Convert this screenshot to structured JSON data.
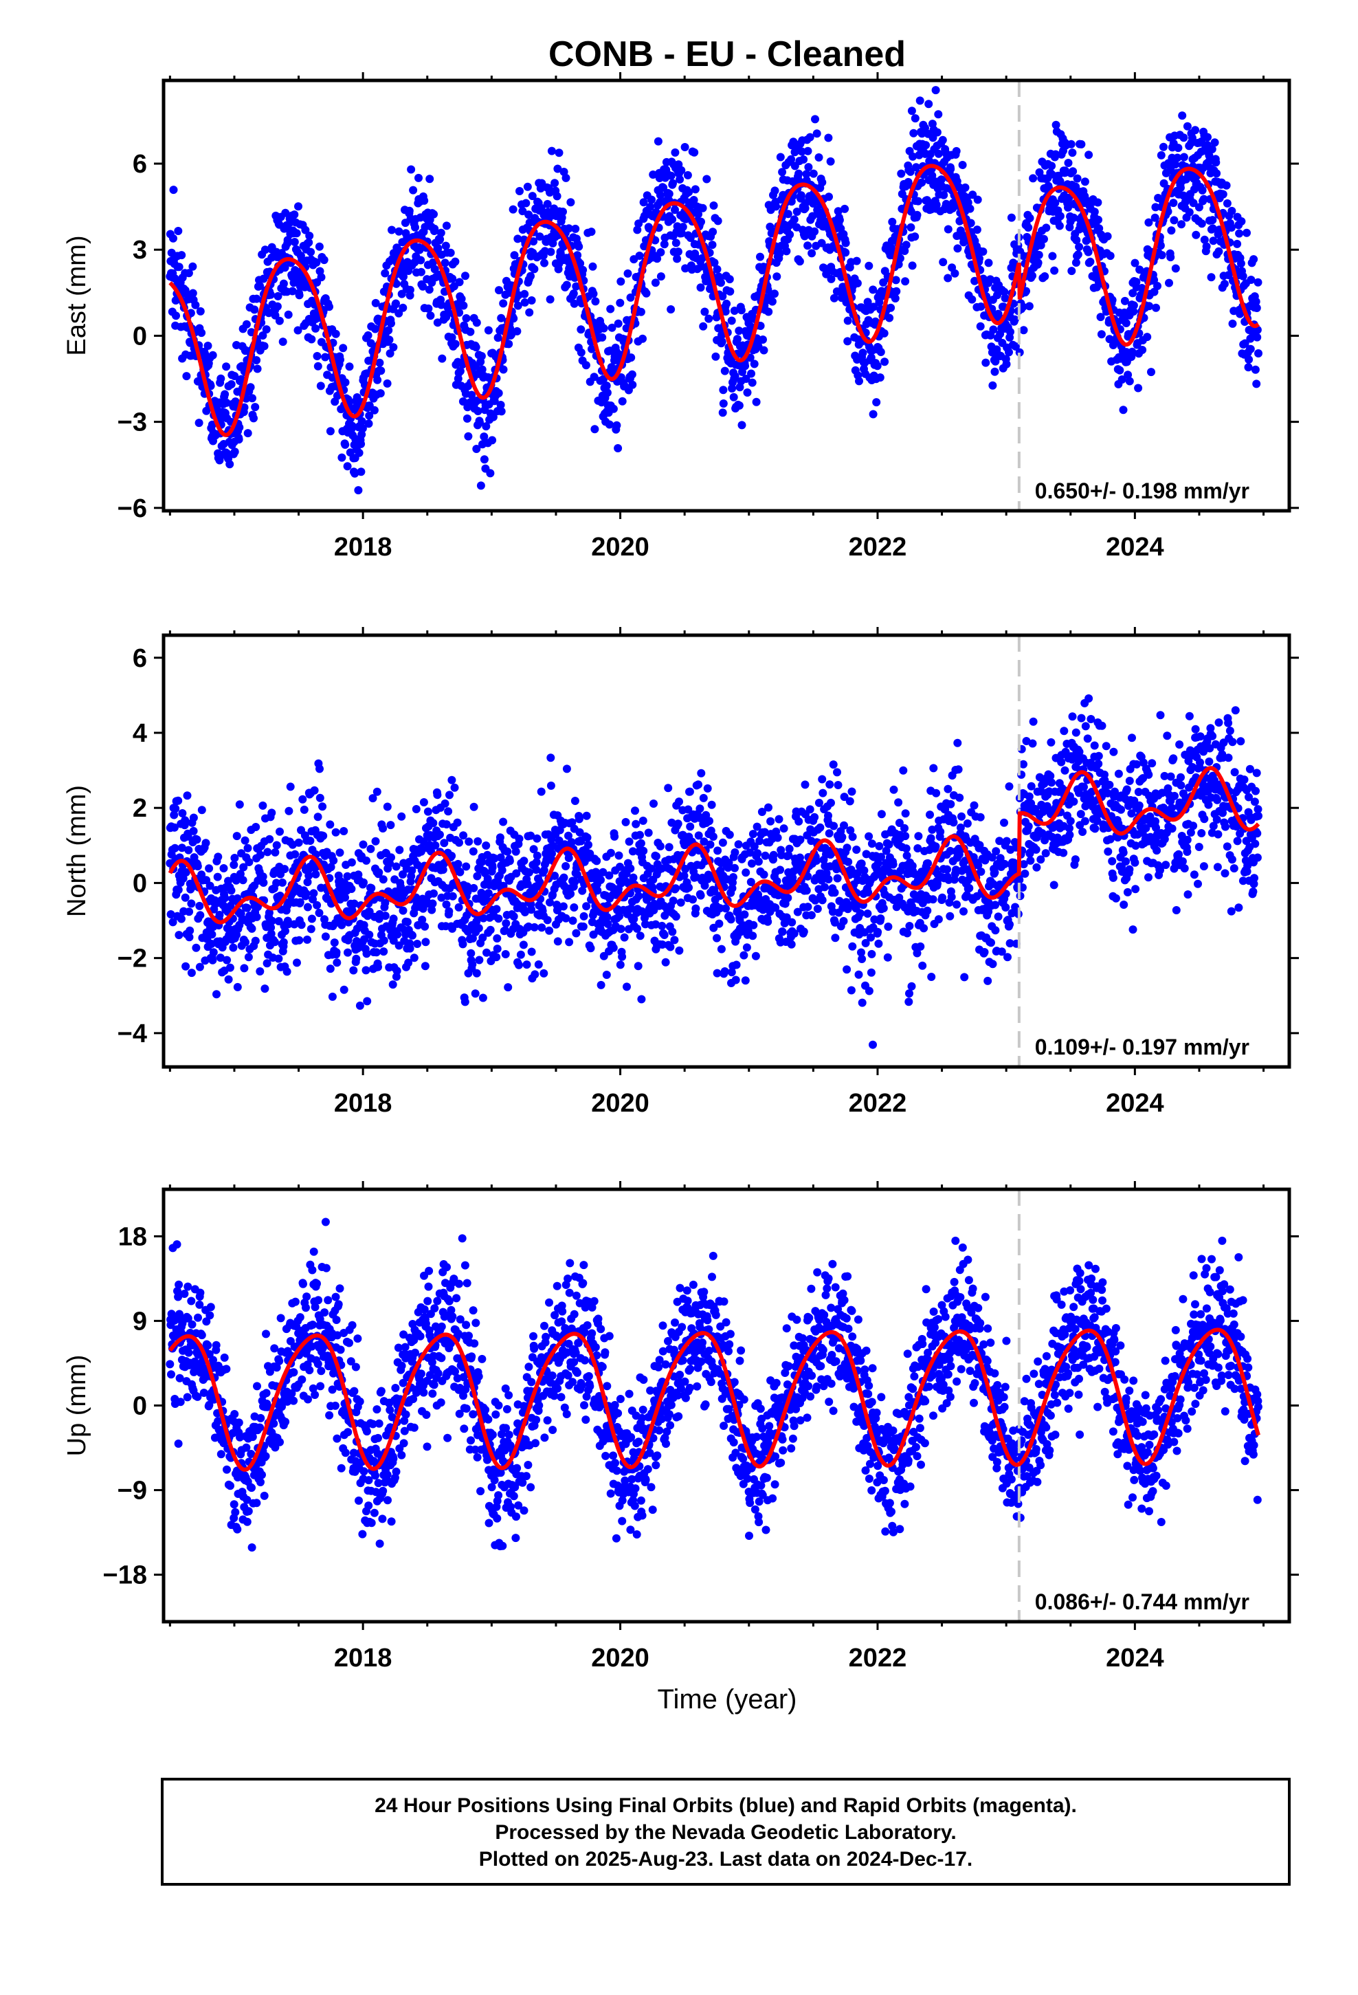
{
  "title": "CONB  - EU - Cleaned",
  "xlabel": "Time (year)",
  "footer": {
    "line1": "24 Hour Positions Using Final Orbits (blue) and Rapid Orbits (magenta).",
    "line2": "Processed by the Nevada Geodetic Laboratory.",
    "line3": "Plotted on 2025-Aug-23. Last data on 2024-Dec-17."
  },
  "colors": {
    "points": "#0000ff",
    "fit": "#ff0000",
    "break_line": "#c8c8c8",
    "frame": "#000000"
  },
  "chart_data": [
    {
      "type": "scatter",
      "component": "east",
      "ylabel": "East (mm)",
      "rate_text": "0.650+/- 0.198 mm/yr",
      "xlim": [
        2016.45,
        2025.2
      ],
      "ylim": [
        -6.1,
        8.9
      ],
      "xticks": [
        2018,
        2020,
        2022,
        2024
      ],
      "xtick_labels": [
        "2018",
        "2020",
        "2022",
        "2024"
      ],
      "yticks": [
        -6,
        -3,
        0,
        3,
        6
      ],
      "ytick_labels": [
        "−6",
        "−3",
        "0",
        "3",
        "6"
      ],
      "break_epoch": 2023.1,
      "x_range": [
        2016.5,
        2024.96
      ],
      "fit": {
        "offset": -0.45,
        "trend_mm_per_yr": 0.65,
        "t0": 2016.5,
        "annual_amp": 2.9,
        "annual_peak": 0.43,
        "semiannual_amp": 0.4,
        "semiannual_peak": 0.2,
        "step_at_break": -1.4,
        "noise_sigma": 1.1
      },
      "n_points": 2700,
      "grid": false
    },
    {
      "type": "scatter",
      "component": "north",
      "ylabel": "North (mm)",
      "rate_text": "0.109+/- 0.197 mm/yr",
      "xlim": [
        2016.45,
        2025.2
      ],
      "ylim": [
        -4.9,
        6.6
      ],
      "xticks": [
        2018,
        2020,
        2022,
        2024
      ],
      "xtick_labels": [
        "2018",
        "2020",
        "2022",
        "2024"
      ],
      "yticks": [
        -4,
        -2,
        0,
        2,
        4,
        6
      ],
      "ytick_labels": [
        "−4",
        "−2",
        "0",
        "2",
        "4",
        "6"
      ],
      "break_epoch": 2023.1,
      "x_range": [
        2016.5,
        2024.96
      ],
      "fit": {
        "offset": -0.4,
        "trend_mm_per_yr": 0.109,
        "t0": 2016.5,
        "annual_amp": 0.55,
        "annual_peak": 0.55,
        "semiannual_amp": 0.45,
        "semiannual_peak": 0.1,
        "step_at_break": 1.6,
        "noise_sigma": 1.0
      },
      "n_points": 2700,
      "grid": false
    },
    {
      "type": "scatter",
      "component": "up",
      "ylabel": "Up (mm)",
      "rate_text": "0.086+/- 0.744 mm/yr",
      "xlim": [
        2016.45,
        2025.2
      ],
      "ylim": [
        -23,
        23
      ],
      "xticks": [
        2018,
        2020,
        2022,
        2024
      ],
      "xtick_labels": [
        "2018",
        "2020",
        "2022",
        "2024"
      ],
      "yticks": [
        -18,
        -9,
        0,
        9,
        18
      ],
      "ytick_labels": [
        "−18",
        "−9",
        "0",
        "9",
        "18"
      ],
      "break_epoch": 2023.1,
      "x_range": [
        2016.5,
        2024.96
      ],
      "fit": {
        "offset": 1.0,
        "trend_mm_per_yr": 0.086,
        "t0": 2016.5,
        "annual_amp": 7.0,
        "annual_peak": 0.6,
        "semiannual_amp": 1.0,
        "semiannual_peak": 0.3,
        "step_at_break": 0.0,
        "noise_sigma": 3.6
      },
      "n_points": 2700,
      "grid": false
    }
  ]
}
